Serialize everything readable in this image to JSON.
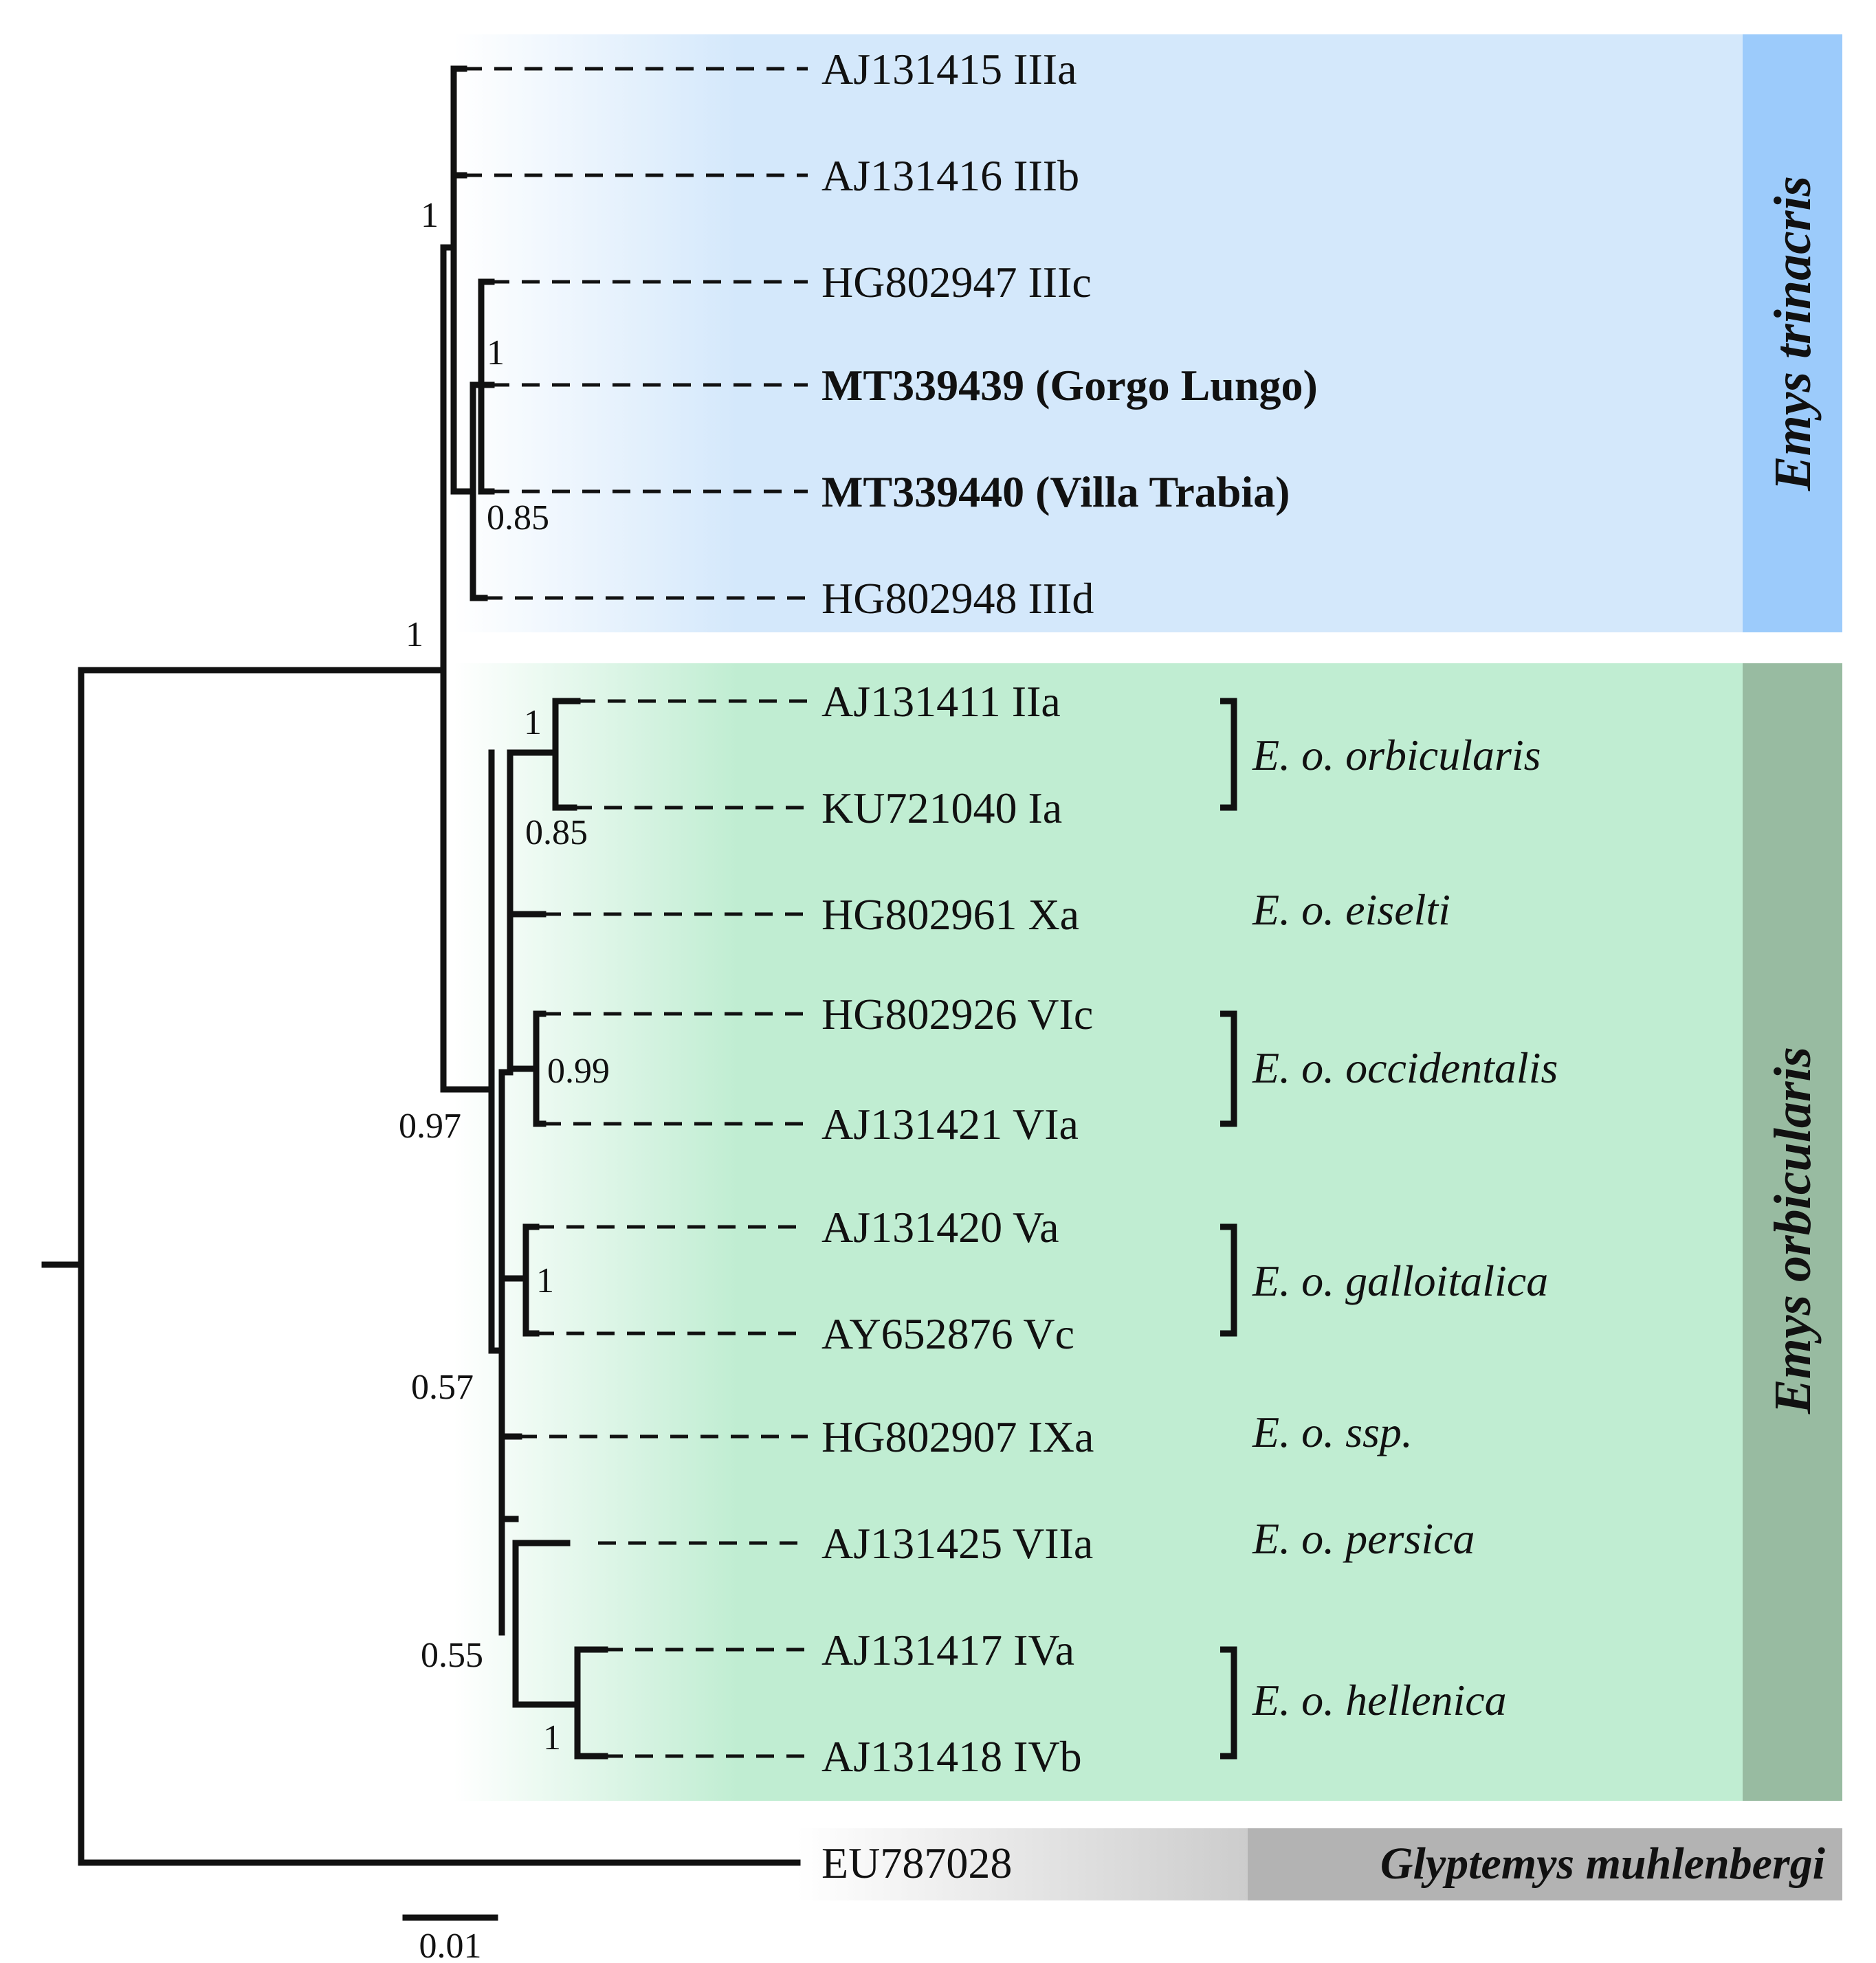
{
  "tips": {
    "aj131415": "AJ131415 IIIa",
    "aj131416": "AJ131416 IIIb",
    "hg802947": "HG802947 IIIc",
    "mt339439": "MT339439 (Gorgo Lungo)",
    "mt339440": "MT339440 (Villa Trabia)",
    "hg802948": "HG802948 IIId",
    "aj131411": "AJ131411 IIa",
    "ku721040": "KU721040 Ia",
    "hg802961": "HG802961 Xa",
    "hg802926": "HG802926 VIc",
    "aj131421": "AJ131421 VIa",
    "aj131420": "AJ131420 Va",
    "ay652876": "AY652876 Vc",
    "hg802907": "HG802907 IXa",
    "aj131425": "AJ131425 VIIa",
    "aj131417": "AJ131417 IVa",
    "aj131418": "AJ131418 IVb",
    "eu787028": "EU787028"
  },
  "support": {
    "trinacris_crown": "1",
    "gorgo_clade": "1",
    "villa_clade": "0.85",
    "emys_root": "1",
    "orbicularis_crown": "0.97",
    "orbicularis_clade": "1",
    "orbicularis_inner": "0.85",
    "occidentalis": "0.99",
    "galloitalica": "1",
    "node_057": "0.57",
    "node_055": "0.55",
    "hellenica": "1"
  },
  "subspecies": {
    "orbicularis": "E. o. orbicularis",
    "eiselti": "E. o. eiselti",
    "occidentalis": "E. o. occidentalis",
    "galloitalica": "E. o. galloitalica",
    "ssp": "E. o. ssp.",
    "persica": "E. o. persica",
    "hellenica": "E. o. hellenica"
  },
  "clades": {
    "trinacris": "Emys trinacris",
    "orbicularis": "Emys orbicularis",
    "outgroup": "Glyptemys muhlenbergi"
  },
  "scale_label": "0.01",
  "colors": {
    "trinacris_fill": "#d4e8fb",
    "trinacris_strip": "#9ccbfb",
    "orbicularis_fill": "#c0edd2",
    "orbicularis_strip": "#98bba1",
    "outgroup_fill": "#cccccc",
    "outgroup_strip": "#b3b3b3"
  }
}
